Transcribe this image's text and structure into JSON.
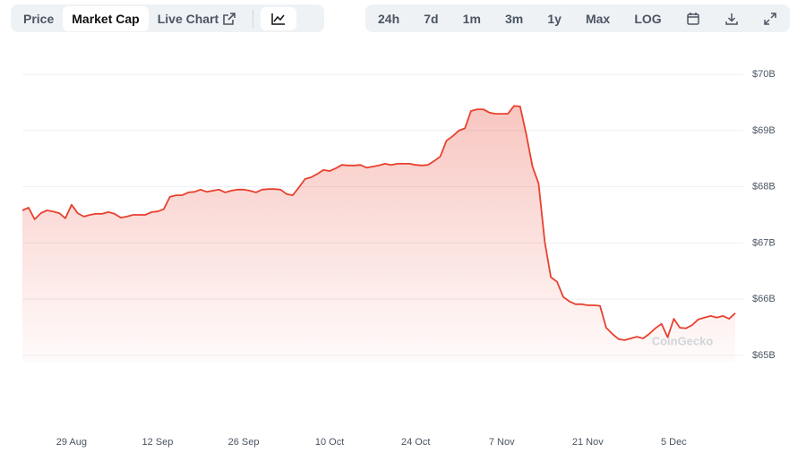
{
  "toolbar": {
    "tabs": [
      "Price",
      "Market Cap",
      "Live Chart"
    ],
    "ranges": [
      "24h",
      "7d",
      "1m",
      "3m",
      "1y",
      "Max",
      "LOG"
    ]
  },
  "chart_data": {
    "type": "area",
    "watermark": "CoinGecko",
    "color": "#e8412f",
    "categories": [
      null,
      null,
      null,
      null,
      null,
      null,
      null,
      null,
      "29 Aug",
      null,
      null,
      null,
      null,
      null,
      null,
      null,
      null,
      null,
      null,
      null,
      null,
      null,
      "12 Sep",
      null,
      null,
      null,
      null,
      null,
      null,
      null,
      null,
      null,
      null,
      null,
      null,
      null,
      "26 Sep",
      null,
      null,
      null,
      null,
      null,
      null,
      null,
      null,
      null,
      null,
      null,
      null,
      null,
      "10 Oct",
      null,
      null,
      null,
      null,
      null,
      null,
      null,
      null,
      null,
      null,
      null,
      null,
      null,
      "24 Oct",
      null,
      null,
      null,
      null,
      null,
      null,
      null,
      null,
      null,
      null,
      null,
      null,
      null,
      "7 Nov",
      null,
      null,
      null,
      null,
      null,
      null,
      null,
      null,
      null,
      null,
      null,
      null,
      null,
      "21 Nov",
      null,
      null,
      null,
      null,
      null,
      null,
      null,
      null,
      null,
      null,
      null,
      null,
      null,
      "5 Dec",
      null,
      null,
      null,
      null,
      null,
      null,
      null,
      null,
      null,
      null
    ],
    "values": [
      67.58,
      67.63,
      67.42,
      67.53,
      67.58,
      67.56,
      67.53,
      67.44,
      67.68,
      67.53,
      67.47,
      67.5,
      67.52,
      67.52,
      67.55,
      67.52,
      67.45,
      67.47,
      67.5,
      67.5,
      67.5,
      67.55,
      67.56,
      67.6,
      67.82,
      67.85,
      67.85,
      67.9,
      67.91,
      67.95,
      67.91,
      67.93,
      67.95,
      67.9,
      67.93,
      67.95,
      67.95,
      67.93,
      67.9,
      67.95,
      67.96,
      67.96,
      67.95,
      67.87,
      67.85,
      67.99,
      68.14,
      68.17,
      68.23,
      68.3,
      68.28,
      68.33,
      68.39,
      68.38,
      68.38,
      68.39,
      68.34,
      68.36,
      68.38,
      68.41,
      68.39,
      68.41,
      68.41,
      68.41,
      68.39,
      68.38,
      68.39,
      68.46,
      68.54,
      68.82,
      68.9,
      69,
      69.04,
      69.35,
      69.38,
      69.38,
      69.32,
      69.3,
      69.3,
      69.3,
      69.44,
      69.43,
      68.93,
      68.36,
      68.06,
      67.02,
      66.39,
      66.31,
      66.04,
      65.96,
      65.91,
      65.91,
      65.89,
      65.89,
      65.88,
      65.49,
      65.38,
      65.29,
      65.27,
      65.3,
      65.33,
      65.3,
      65.38,
      65.48,
      65.56,
      65.32,
      65.65,
      65.49,
      65.48,
      65.54,
      65.64,
      65.67,
      65.7,
      65.67,
      65.7,
      65.65,
      65.75
    ],
    "ylim": [
      64.87,
      70.21
    ],
    "yticks": [
      {
        "value": 65,
        "label": "$65B"
      },
      {
        "value": 66,
        "label": "$66B"
      },
      {
        "value": 67,
        "label": "$67B"
      },
      {
        "value": 68,
        "label": "$68B"
      },
      {
        "value": 69,
        "label": "$69B"
      },
      {
        "value": 70,
        "label": "$70B"
      }
    ],
    "grid": true
  }
}
